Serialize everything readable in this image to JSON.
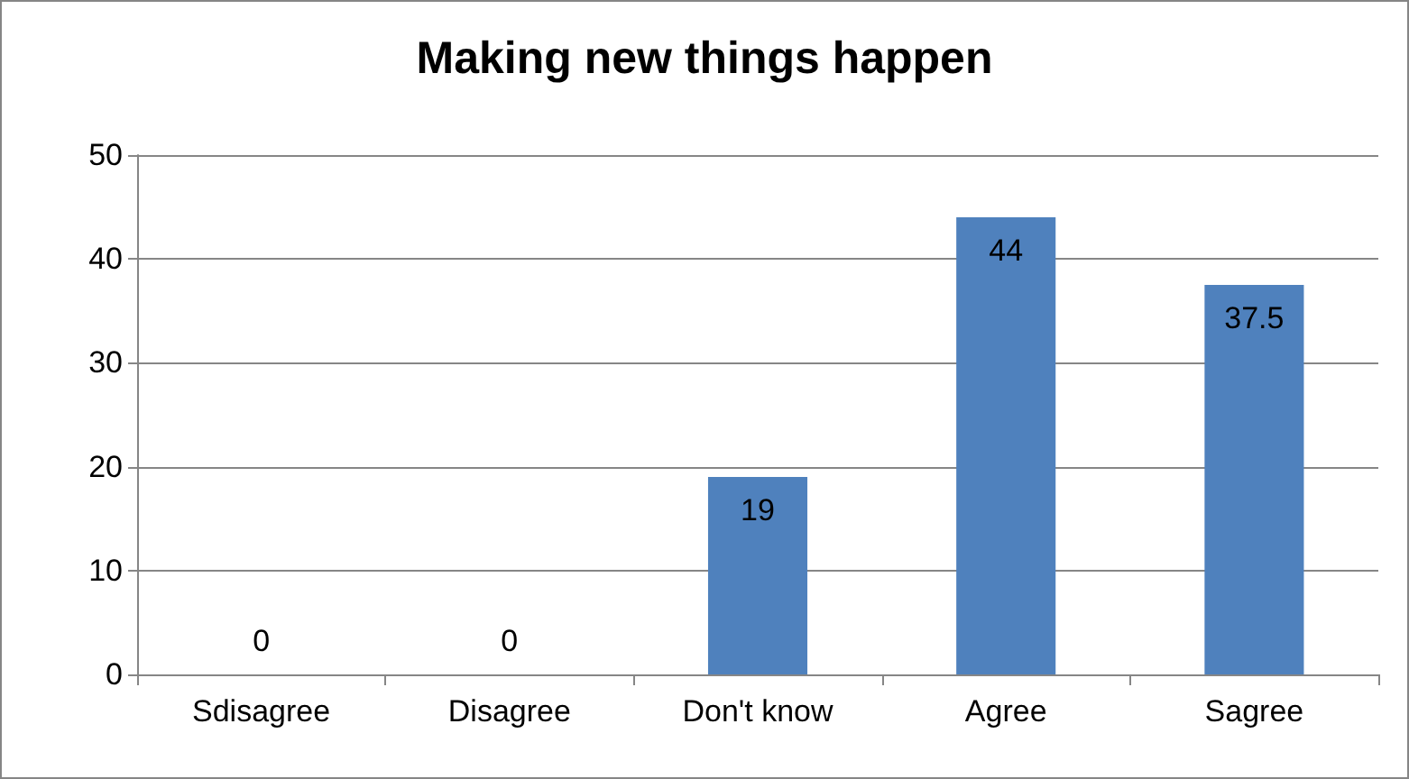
{
  "chart_data": {
    "type": "bar",
    "title": "Making new things happen",
    "categories": [
      "Sdisagree",
      "Disagree",
      "Don't know",
      "Agree",
      "Sagree"
    ],
    "values": [
      0,
      0,
      19,
      44,
      37.5
    ],
    "color": "#4f81bd",
    "ylim": [
      0,
      50
    ],
    "yticks": [
      0,
      10,
      20,
      30,
      40,
      50
    ],
    "grid": "y",
    "data_labels": true
  }
}
